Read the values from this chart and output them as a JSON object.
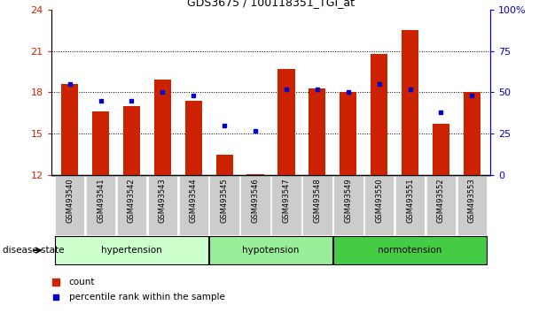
{
  "title": "GDS3675 / 100118351_TGI_at",
  "samples": [
    "GSM493540",
    "GSM493541",
    "GSM493542",
    "GSM493543",
    "GSM493544",
    "GSM493545",
    "GSM493546",
    "GSM493547",
    "GSM493548",
    "GSM493549",
    "GSM493550",
    "GSM493551",
    "GSM493552",
    "GSM493553"
  ],
  "count_values": [
    18.6,
    16.6,
    17.0,
    18.9,
    17.4,
    13.5,
    12.1,
    19.7,
    18.3,
    18.0,
    20.8,
    22.5,
    15.7,
    18.0
  ],
  "percentile_values": [
    55,
    45,
    45,
    50,
    48,
    30,
    27,
    52,
    52,
    50,
    55,
    52,
    38,
    48
  ],
  "y_min": 12,
  "y_max": 24,
  "y_ticks_left": [
    12,
    15,
    18,
    21,
    24
  ],
  "y_ticks_right_pct": [
    0,
    25,
    50,
    75,
    100
  ],
  "bar_color": "#cc2200",
  "dot_color": "#0000cc",
  "bar_width": 0.55,
  "left_axis_color": "#cc2200",
  "right_axis_color": "#0000cc",
  "group_colors": [
    "#ccffcc",
    "#99ee99",
    "#44cc44"
  ],
  "group_labels": [
    "hypertension",
    "hypotension",
    "normotension"
  ],
  "group_ranges": [
    [
      0,
      4
    ],
    [
      5,
      8
    ],
    [
      9,
      13
    ]
  ],
  "tick_label_bg": "#cccccc",
  "grid_yticks": [
    15,
    18,
    21
  ]
}
